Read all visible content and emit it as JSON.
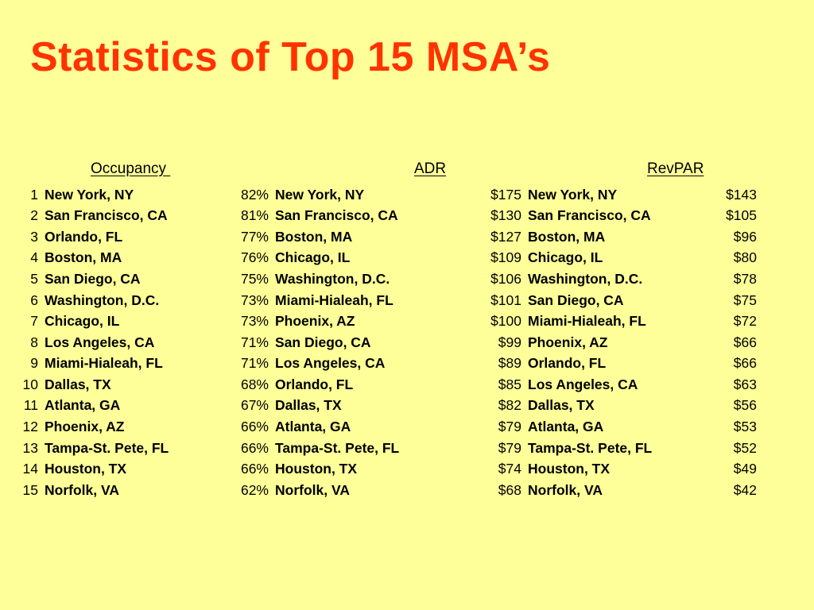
{
  "title": "Statistics of Top 15 MSA’s",
  "headers": {
    "occupancy": "Occupancy ",
    "adr": "ADR",
    "revpar": "RevPAR"
  },
  "rows": [
    {
      "rank": "1",
      "occ_city": "New York, NY",
      "occ_value": "82%",
      "adr_city": "New York, NY",
      "adr_value": "$175",
      "rev_city": "New York, NY",
      "rev_value": "$143"
    },
    {
      "rank": "2",
      "occ_city": "San Francisco, CA",
      "occ_value": "81%",
      "adr_city": "San Francisco, CA",
      "adr_value": "$130",
      "rev_city": "San Francisco, CA",
      "rev_value": "$105"
    },
    {
      "rank": "3",
      "occ_city": "Orlando, FL",
      "occ_value": "77%",
      "adr_city": "Boston, MA",
      "adr_value": "$127",
      "rev_city": "Boston, MA",
      "rev_value": "$96"
    },
    {
      "rank": "4",
      "occ_city": "Boston, MA",
      "occ_value": "76%",
      "adr_city": "Chicago, IL",
      "adr_value": "$109",
      "rev_city": "Chicago, IL",
      "rev_value": "$80"
    },
    {
      "rank": "5",
      "occ_city": "San Diego, CA",
      "occ_value": "75%",
      "adr_city": "Washington, D.C.",
      "adr_value": "$106",
      "rev_city": "Washington, D.C.",
      "rev_value": "$78"
    },
    {
      "rank": "6",
      "occ_city": "Washington, D.C.",
      "occ_value": "73%",
      "adr_city": "Miami-Hialeah, FL",
      "adr_value": "$101",
      "rev_city": "San Diego, CA",
      "rev_value": "$75"
    },
    {
      "rank": "7",
      "occ_city": "Chicago, IL",
      "occ_value": "73%",
      "adr_city": "Phoenix, AZ",
      "adr_value": "$100",
      "rev_city": "Miami-Hialeah, FL",
      "rev_value": "$72"
    },
    {
      "rank": "8",
      "occ_city": "Los Angeles, CA",
      "occ_value": "71%",
      "adr_city": "San Diego, CA",
      "adr_value": "$99",
      "rev_city": "Phoenix, AZ",
      "rev_value": "$66"
    },
    {
      "rank": "9",
      "occ_city": "Miami-Hialeah, FL",
      "occ_value": "71%",
      "adr_city": "Los Angeles, CA",
      "adr_value": "$89",
      "rev_city": "Orlando, FL",
      "rev_value": "$66"
    },
    {
      "rank": "10",
      "occ_city": "Dallas, TX",
      "occ_value": "68%",
      "adr_city": "Orlando, FL",
      "adr_value": "$85",
      "rev_city": "Los Angeles, CA",
      "rev_value": "$63"
    },
    {
      "rank": "11",
      "occ_city": "Atlanta, GA",
      "occ_value": "67%",
      "adr_city": "Dallas, TX",
      "adr_value": "$82",
      "rev_city": "Dallas, TX",
      "rev_value": "$56"
    },
    {
      "rank": "12",
      "occ_city": "Phoenix, AZ",
      "occ_value": "66%",
      "adr_city": "Atlanta, GA",
      "adr_value": "$79",
      "rev_city": "Atlanta, GA",
      "rev_value": "$53"
    },
    {
      "rank": "13",
      "occ_city": "Tampa-St. Pete, FL",
      "occ_value": "66%",
      "adr_city": "Tampa-St. Pete, FL",
      "adr_value": "$79",
      "rev_city": "Tampa-St. Pete, FL",
      "rev_value": "$52"
    },
    {
      "rank": "14",
      "occ_city": "Houston, TX",
      "occ_value": "66%",
      "adr_city": "Houston, TX",
      "adr_value": "$74",
      "rev_city": "Houston, TX",
      "rev_value": "$49"
    },
    {
      "rank": "15",
      "occ_city": "Norfolk, VA",
      "occ_value": "62%",
      "adr_city": "Norfolk, VA",
      "adr_value": "$68",
      "rev_city": "Norfolk, VA",
      "rev_value": "$42"
    }
  ]
}
